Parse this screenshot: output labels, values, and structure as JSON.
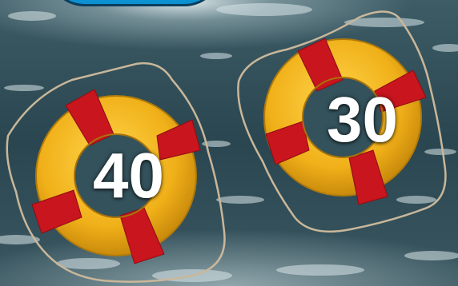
{
  "game": {
    "choices": [
      {
        "label": "40"
      },
      {
        "label": "30"
      }
    ]
  },
  "colors": {
    "water": "#2e4b55",
    "ring_yellow": "#f2b81c",
    "ring_band_red": "#c8151e",
    "rope": "#c9b79a",
    "number_text": "#ffffff",
    "top_bubble": "#0a8fd0"
  }
}
